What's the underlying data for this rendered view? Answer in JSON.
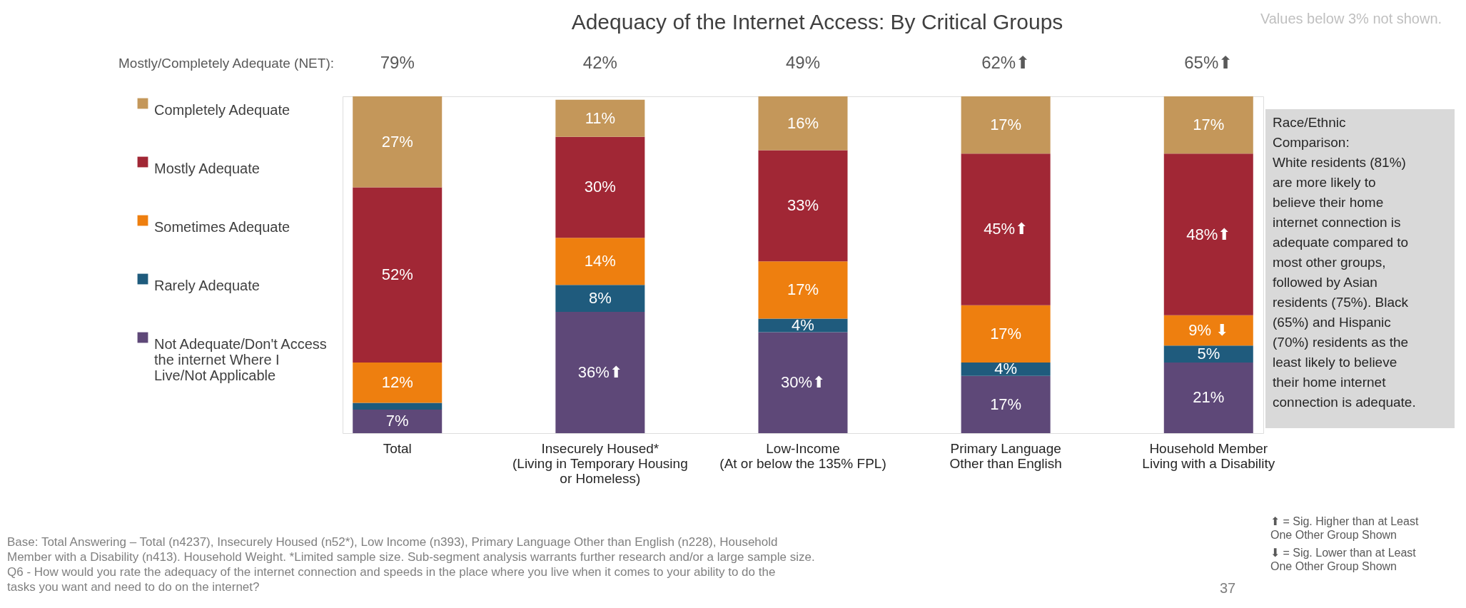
{
  "chart_data": {
    "type": "bar",
    "stacked": true,
    "title": "Adequacy of the Internet Access: By Critical Groups",
    "categories": [
      "Total",
      "Insecurely Housed*\n(Living in Temporary Housing\nor Homeless)",
      "Low-Income\n(At or below the 135% FPL)",
      "Primary Language\nOther than English",
      "Household Member\nLiving with a Disability"
    ],
    "series": [
      {
        "name": "Not Adequate/Don't Access\nthe internet Where I\nLive/Not Applicable",
        "color": "#5e4878",
        "values": [
          7,
          36,
          30,
          17,
          21
        ],
        "value_labels": [
          "7%",
          "36%⬆",
          "30%⬆",
          "17%",
          "21%"
        ]
      },
      {
        "name": "Rarely Adequate",
        "color": "#1f5b7d",
        "values": [
          2,
          8,
          4,
          4,
          5
        ],
        "value_labels": [
          null,
          "8%",
          "4%",
          "4%",
          "5%"
        ]
      },
      {
        "name": "Sometimes Adequate",
        "color": "#ee7f0f",
        "values": [
          12,
          14,
          17,
          17,
          9
        ],
        "value_labels": [
          "12%",
          "14%",
          "17%",
          "17%",
          "9% ⬇"
        ]
      },
      {
        "name": "Mostly Adequate",
        "color": "#a12735",
        "values": [
          52,
          30,
          33,
          45,
          48
        ],
        "value_labels": [
          "52%",
          "30%",
          "33%",
          "45%⬆",
          "48%⬆"
        ]
      },
      {
        "name": "Completely Adequate",
        "color": "#c4975a",
        "values": [
          27,
          11,
          16,
          17,
          17
        ],
        "value_labels": [
          "27%",
          "11%",
          "16%",
          "17%",
          "17%"
        ]
      }
    ],
    "legend": "left",
    "grid": false,
    "annotations": [
      "Mostly/Completely Adequate (NET):",
      "79%",
      "42%",
      "49%",
      "62%⬆",
      "65%⬆",
      "Values below 3% not shown.",
      "Race/Ethnic\nComparison:\nWhite residents (81%)\nare more likely to\nbelieve their home\ninternet connection is\nadequate compared to\nmost other groups,\nfollowed by Asian\nresidents (75%). Black\n(65%) and Hispanic\n(70%) residents as the\nleast likely to believe\ntheir home internet\nconnection is adequate.",
      "⬆ = Sig. Higher than at Least\nOne Other Group Shown",
      "⬇ = Sig. Lower than at Least\nOne Other Group Shown",
      "Base: Total Answering – Total (n4237), Insecurely Housed (n52*), Low Income (n393), Primary Language Other than English (n228), Household\nMember with a Disability (n413). Household Weight. *Limited sample size. Sub-segment analysis warrants further research and/or a large sample size.\nQ6 - How would you rate the adequacy of the internet connection and speeds in the place where you live when it comes to your ability to do the\ntasks you want and need to do on the internet?",
      "37"
    ]
  }
}
